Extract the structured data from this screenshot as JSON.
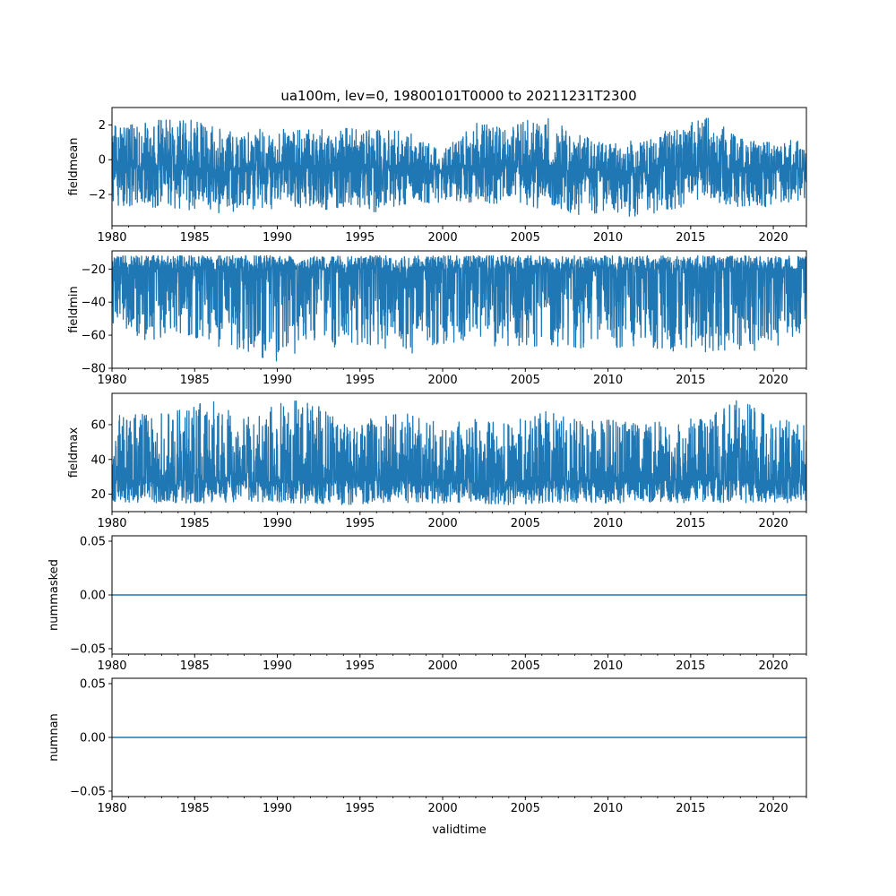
{
  "chart_data": [
    {
      "type": "line",
      "title": "ua100m, lev=0, 19800101T0000 to 20211231T2300",
      "xlabel": "",
      "ylabel": "fieldmean",
      "xlim": [
        1980.0,
        2022.0
      ],
      "ylim": [
        -3.8,
        3.0
      ],
      "xticks": [
        1980,
        1985,
        1990,
        1995,
        2000,
        2005,
        2010,
        2015,
        2020
      ],
      "yticks": [
        -2,
        0,
        2
      ],
      "ytick_labels": [
        "−2",
        "0",
        "2"
      ],
      "color": "#1f77b4",
      "series": [
        {
          "x": [
            1980.0,
            1982.0,
            1984.0,
            1986.0,
            1988.0,
            1990.0,
            1992.0,
            1994.0,
            1996.0,
            1998.0,
            2000.0,
            2002.0,
            2004.0,
            2006.0,
            2008.0,
            2010.0,
            2012.0,
            2014.0,
            2016.0,
            2018.0,
            2020.0,
            2022.0
          ],
          "y": [
            -0.3,
            -0.5,
            -0.4,
            -0.6,
            -0.5,
            -0.4,
            -0.5,
            -0.6,
            -0.4,
            -0.5,
            -0.7,
            -0.3,
            -0.4,
            -0.4,
            -0.6,
            -0.6,
            -0.7,
            -0.4,
            -0.3,
            -0.6,
            -0.6,
            -0.5
          ],
          "ymax": [
            2.0,
            2.1,
            2.5,
            1.9,
            1.7,
            1.8,
            1.7,
            1.8,
            1.7,
            1.6,
            0.5,
            2.1,
            1.8,
            2.6,
            1.5,
            0.9,
            1.2,
            1.9,
            2.4,
            1.4,
            1.0,
            1.2
          ],
          "ymin": [
            -2.6,
            -2.7,
            -2.8,
            -3.1,
            -2.9,
            -2.8,
            -2.9,
            -2.8,
            -3.0,
            -2.6,
            -2.6,
            -2.4,
            -2.6,
            -2.8,
            -3.2,
            -3.0,
            -3.4,
            -2.8,
            -2.4,
            -2.7,
            -2.8,
            -2.2
          ]
        }
      ]
    },
    {
      "type": "line",
      "xlabel": "",
      "ylabel": "fieldmin",
      "xlim": [
        1980.0,
        2022.0
      ],
      "ylim": [
        -80,
        -9
      ],
      "xticks": [
        1980,
        1985,
        1990,
        1995,
        2000,
        2005,
        2010,
        2015,
        2020
      ],
      "yticks": [
        -80,
        -60,
        -40,
        -20
      ],
      "ytick_labels": [
        "−80",
        "−60",
        "−40",
        "−20"
      ],
      "color": "#1f77b4",
      "series": [
        {
          "x": [
            1980.0,
            1982.0,
            1984.0,
            1986.0,
            1988.0,
            1990.0,
            1992.0,
            1994.0,
            1996.0,
            1998.0,
            2000.0,
            2002.0,
            2004.0,
            2006.0,
            2008.0,
            2010.0,
            2012.0,
            2014.0,
            2016.0,
            2018.0,
            2020.0,
            2022.0
          ],
          "y": [
            -20,
            -20,
            -20,
            -20,
            -20,
            -20,
            -20,
            -20,
            -20,
            -20,
            -20,
            -20,
            -20,
            -20,
            -20,
            -20,
            -20,
            -20,
            -20,
            -20,
            -20,
            -20
          ],
          "ymax": [
            -12,
            -12,
            -12,
            -12,
            -12,
            -12,
            -12,
            -12,
            -12,
            -12,
            -12,
            -12,
            -12,
            -12,
            -12,
            -12,
            -12,
            -12,
            -12,
            -12,
            -12,
            -12
          ],
          "ymin": [
            -55,
            -64,
            -58,
            -66,
            -69,
            -77,
            -66,
            -68,
            -66,
            -73,
            -65,
            -64,
            -69,
            -66,
            -68,
            -68,
            -66,
            -70,
            -70,
            -70,
            -68,
            -58
          ]
        }
      ]
    },
    {
      "type": "line",
      "xlabel": "",
      "ylabel": "fieldmax",
      "xlim": [
        1980.0,
        2022.0
      ],
      "ylim": [
        10,
        78
      ],
      "xticks": [
        1980,
        1985,
        1990,
        1995,
        2000,
        2005,
        2010,
        2015,
        2020
      ],
      "yticks": [
        20,
        40,
        60
      ],
      "ytick_labels": [
        "20",
        "40",
        "60"
      ],
      "color": "#1f77b4",
      "series": [
        {
          "x": [
            1980.0,
            1982.0,
            1984.0,
            1986.0,
            1988.0,
            1990.0,
            1992.0,
            1994.0,
            1996.0,
            1998.0,
            2000.0,
            2002.0,
            2004.0,
            2006.0,
            2008.0,
            2010.0,
            2012.0,
            2014.0,
            2016.0,
            2018.0,
            2020.0,
            2022.0
          ],
          "y": [
            28,
            28,
            28,
            28,
            28,
            28,
            28,
            28,
            28,
            28,
            28,
            28,
            28,
            28,
            28,
            28,
            28,
            28,
            28,
            28,
            28,
            28
          ],
          "ymax": [
            65,
            66,
            68,
            74,
            63,
            73,
            74,
            60,
            64,
            67,
            60,
            63,
            60,
            69,
            63,
            63,
            60,
            63,
            64,
            75,
            62,
            63
          ],
          "ymin": [
            16,
            15,
            15,
            15,
            16,
            15,
            15,
            14,
            15,
            15,
            15,
            15,
            14,
            15,
            15,
            15,
            15,
            15,
            15,
            15,
            15,
            15
          ]
        }
      ]
    },
    {
      "type": "line",
      "xlabel": "",
      "ylabel": "nummasked",
      "xlim": [
        1980.0,
        2022.0
      ],
      "ylim": [
        -0.055,
        0.055
      ],
      "xticks": [
        1980,
        1985,
        1990,
        1995,
        2000,
        2005,
        2010,
        2015,
        2020
      ],
      "yticks": [
        -0.05,
        0.0,
        0.05
      ],
      "ytick_labels": [
        "−0.05",
        "0.00",
        "0.05"
      ],
      "color": "#1f77b4",
      "series": [
        {
          "x": [
            1980.0,
            2022.0
          ],
          "y": [
            0,
            0
          ]
        }
      ]
    },
    {
      "type": "line",
      "xlabel": "validtime",
      "ylabel": "numnan",
      "xlim": [
        1980.0,
        2022.0
      ],
      "ylim": [
        -0.055,
        0.055
      ],
      "xticks": [
        1980,
        1985,
        1990,
        1995,
        2000,
        2005,
        2010,
        2015,
        2020
      ],
      "yticks": [
        -0.05,
        0.0,
        0.05
      ],
      "ytick_labels": [
        "−0.05",
        "0.00",
        "0.05"
      ],
      "color": "#1f77b4",
      "series": [
        {
          "x": [
            1980.0,
            2022.0
          ],
          "y": [
            0,
            0
          ]
        }
      ]
    }
  ]
}
